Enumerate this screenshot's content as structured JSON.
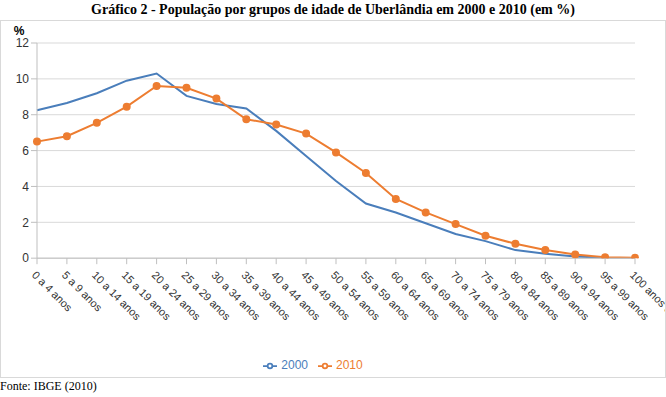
{
  "chart_data": {
    "type": "line",
    "title": "Gráfico 2 - População por grupos de idade de Uberlândia em 2000 e 2010 (em %)",
    "source": "Fonte: IBGE (2010)",
    "y_label": "%",
    "categories": [
      "0 a 4 anos",
      "5 a 9 anos",
      "10 a 14 anos",
      "15 a 19 anos",
      "20 a 24 anos",
      "25 a 29 anos",
      "30 a 34 anos",
      "35 a 39 anos",
      "40 a 44 anos",
      "45 a 49 anos",
      "50 a 54 anos",
      "55 a 59 anos",
      "60 a 64 anos",
      "65 a 69 anos",
      "70 a 74 anos",
      "75 a 79 anos",
      "80 a 84 anos",
      "85 a 89 anos",
      "90 a 94 anos",
      "95 a 99 anos",
      "100 anos ou mais"
    ],
    "series": [
      {
        "name": "2000",
        "color": "#4a7ebb",
        "marker": "none",
        "values": [
          8.25,
          8.65,
          9.2,
          9.9,
          10.3,
          9.05,
          8.6,
          8.35,
          7.1,
          5.7,
          4.3,
          3.05,
          2.55,
          1.95,
          1.35,
          0.95,
          0.45,
          0.25,
          0.1,
          0.03,
          0.01
        ]
      },
      {
        "name": "2010",
        "color": "#ed7d31",
        "marker": "circle",
        "values": [
          6.5,
          6.8,
          7.55,
          8.45,
          9.6,
          9.5,
          8.9,
          7.75,
          7.45,
          6.95,
          5.9,
          4.75,
          3.3,
          2.55,
          1.9,
          1.25,
          0.8,
          0.45,
          0.2,
          0.05,
          0.02
        ]
      }
    ],
    "ylim": [
      0,
      12
    ],
    "yticks": [
      0,
      2,
      4,
      6,
      8,
      10,
      12
    ],
    "grid": true,
    "legend": "bottom"
  }
}
